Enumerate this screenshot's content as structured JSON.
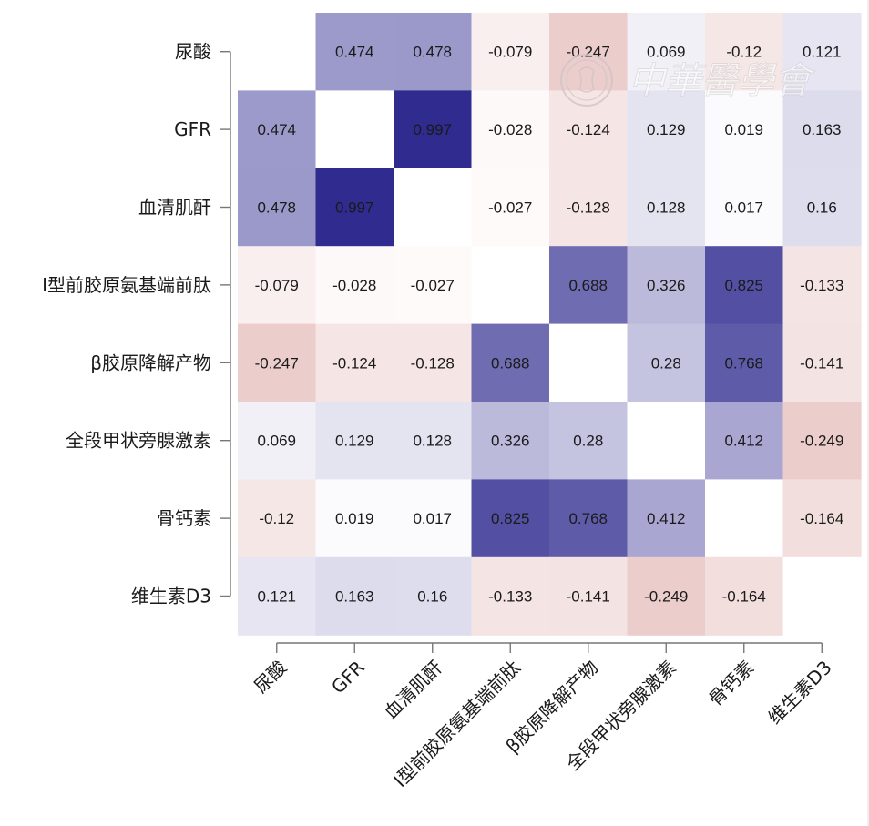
{
  "chart_data": {
    "type": "heatmap",
    "title": "",
    "xlabel": "",
    "ylabel": "",
    "variables": [
      "尿酸",
      "GFR",
      "血清肌酐",
      "I型前胶原氨基端前肽",
      "β胶原降解产物",
      "全段甲状旁腺激素",
      "骨钙素",
      "维生素D3"
    ],
    "matrix": [
      [
        null,
        0.474,
        0.478,
        -0.079,
        -0.247,
        0.069,
        -0.12,
        0.121
      ],
      [
        0.474,
        null,
        0.997,
        -0.028,
        -0.124,
        0.129,
        0.019,
        0.163
      ],
      [
        0.478,
        0.997,
        null,
        -0.027,
        -0.128,
        0.128,
        0.017,
        0.16
      ],
      [
        -0.079,
        -0.028,
        -0.027,
        null,
        0.688,
        0.326,
        0.825,
        -0.133
      ],
      [
        -0.247,
        -0.124,
        -0.128,
        0.688,
        null,
        0.28,
        0.768,
        -0.141
      ],
      [
        0.069,
        0.129,
        0.128,
        0.326,
        0.28,
        null,
        0.412,
        -0.249
      ],
      [
        -0.12,
        0.019,
        0.017,
        0.825,
        0.768,
        0.412,
        null,
        -0.164
      ],
      [
        0.121,
        0.163,
        0.16,
        -0.133,
        -0.141,
        -0.249,
        -0.164,
        null
      ]
    ],
    "color_scale": {
      "positive": "#2e2a8f",
      "negative": "#b8504a",
      "zero": "#ffffff",
      "diagonal": "#ffffff"
    },
    "legend": "none",
    "grid": false
  },
  "watermark": {
    "text": "中華醫學會"
  }
}
